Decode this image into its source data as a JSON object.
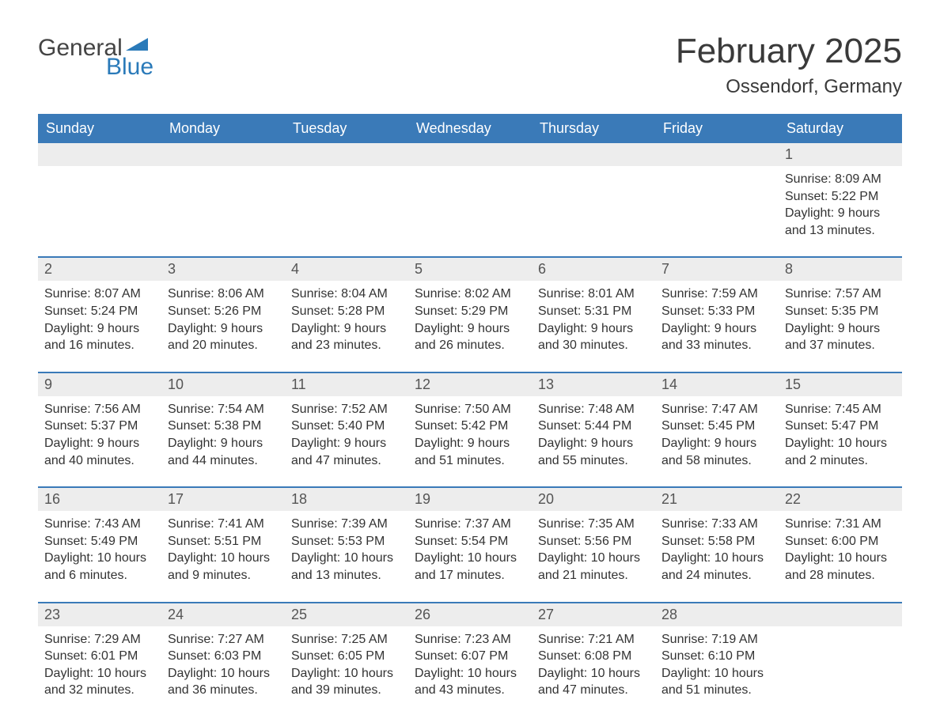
{
  "logo": {
    "text1": "General",
    "text2": "Blue",
    "mark_color": "#2a7ab9"
  },
  "title": {
    "month": "February 2025",
    "location": "Ossendorf, Germany"
  },
  "colors": {
    "header_bg": "#3a7ab8",
    "header_fg": "#ffffff",
    "daybar_bg": "#ededed",
    "daybar_border": "#3a7ab8",
    "text": "#333333",
    "title_text": "#3a3a3a"
  },
  "weekdays": [
    "Sunday",
    "Monday",
    "Tuesday",
    "Wednesday",
    "Thursday",
    "Friday",
    "Saturday"
  ],
  "weeks": [
    [
      null,
      null,
      null,
      null,
      null,
      null,
      {
        "n": "1",
        "sunrise": "Sunrise: 8:09 AM",
        "sunset": "Sunset: 5:22 PM",
        "daylight": "Daylight: 9 hours and 13 minutes."
      }
    ],
    [
      {
        "n": "2",
        "sunrise": "Sunrise: 8:07 AM",
        "sunset": "Sunset: 5:24 PM",
        "daylight": "Daylight: 9 hours and 16 minutes."
      },
      {
        "n": "3",
        "sunrise": "Sunrise: 8:06 AM",
        "sunset": "Sunset: 5:26 PM",
        "daylight": "Daylight: 9 hours and 20 minutes."
      },
      {
        "n": "4",
        "sunrise": "Sunrise: 8:04 AM",
        "sunset": "Sunset: 5:28 PM",
        "daylight": "Daylight: 9 hours and 23 minutes."
      },
      {
        "n": "5",
        "sunrise": "Sunrise: 8:02 AM",
        "sunset": "Sunset: 5:29 PM",
        "daylight": "Daylight: 9 hours and 26 minutes."
      },
      {
        "n": "6",
        "sunrise": "Sunrise: 8:01 AM",
        "sunset": "Sunset: 5:31 PM",
        "daylight": "Daylight: 9 hours and 30 minutes."
      },
      {
        "n": "7",
        "sunrise": "Sunrise: 7:59 AM",
        "sunset": "Sunset: 5:33 PM",
        "daylight": "Daylight: 9 hours and 33 minutes."
      },
      {
        "n": "8",
        "sunrise": "Sunrise: 7:57 AM",
        "sunset": "Sunset: 5:35 PM",
        "daylight": "Daylight: 9 hours and 37 minutes."
      }
    ],
    [
      {
        "n": "9",
        "sunrise": "Sunrise: 7:56 AM",
        "sunset": "Sunset: 5:37 PM",
        "daylight": "Daylight: 9 hours and 40 minutes."
      },
      {
        "n": "10",
        "sunrise": "Sunrise: 7:54 AM",
        "sunset": "Sunset: 5:38 PM",
        "daylight": "Daylight: 9 hours and 44 minutes."
      },
      {
        "n": "11",
        "sunrise": "Sunrise: 7:52 AM",
        "sunset": "Sunset: 5:40 PM",
        "daylight": "Daylight: 9 hours and 47 minutes."
      },
      {
        "n": "12",
        "sunrise": "Sunrise: 7:50 AM",
        "sunset": "Sunset: 5:42 PM",
        "daylight": "Daylight: 9 hours and 51 minutes."
      },
      {
        "n": "13",
        "sunrise": "Sunrise: 7:48 AM",
        "sunset": "Sunset: 5:44 PM",
        "daylight": "Daylight: 9 hours and 55 minutes."
      },
      {
        "n": "14",
        "sunrise": "Sunrise: 7:47 AM",
        "sunset": "Sunset: 5:45 PM",
        "daylight": "Daylight: 9 hours and 58 minutes."
      },
      {
        "n": "15",
        "sunrise": "Sunrise: 7:45 AM",
        "sunset": "Sunset: 5:47 PM",
        "daylight": "Daylight: 10 hours and 2 minutes."
      }
    ],
    [
      {
        "n": "16",
        "sunrise": "Sunrise: 7:43 AM",
        "sunset": "Sunset: 5:49 PM",
        "daylight": "Daylight: 10 hours and 6 minutes."
      },
      {
        "n": "17",
        "sunrise": "Sunrise: 7:41 AM",
        "sunset": "Sunset: 5:51 PM",
        "daylight": "Daylight: 10 hours and 9 minutes."
      },
      {
        "n": "18",
        "sunrise": "Sunrise: 7:39 AM",
        "sunset": "Sunset: 5:53 PM",
        "daylight": "Daylight: 10 hours and 13 minutes."
      },
      {
        "n": "19",
        "sunrise": "Sunrise: 7:37 AM",
        "sunset": "Sunset: 5:54 PM",
        "daylight": "Daylight: 10 hours and 17 minutes."
      },
      {
        "n": "20",
        "sunrise": "Sunrise: 7:35 AM",
        "sunset": "Sunset: 5:56 PM",
        "daylight": "Daylight: 10 hours and 21 minutes."
      },
      {
        "n": "21",
        "sunrise": "Sunrise: 7:33 AM",
        "sunset": "Sunset: 5:58 PM",
        "daylight": "Daylight: 10 hours and 24 minutes."
      },
      {
        "n": "22",
        "sunrise": "Sunrise: 7:31 AM",
        "sunset": "Sunset: 6:00 PM",
        "daylight": "Daylight: 10 hours and 28 minutes."
      }
    ],
    [
      {
        "n": "23",
        "sunrise": "Sunrise: 7:29 AM",
        "sunset": "Sunset: 6:01 PM",
        "daylight": "Daylight: 10 hours and 32 minutes."
      },
      {
        "n": "24",
        "sunrise": "Sunrise: 7:27 AM",
        "sunset": "Sunset: 6:03 PM",
        "daylight": "Daylight: 10 hours and 36 minutes."
      },
      {
        "n": "25",
        "sunrise": "Sunrise: 7:25 AM",
        "sunset": "Sunset: 6:05 PM",
        "daylight": "Daylight: 10 hours and 39 minutes."
      },
      {
        "n": "26",
        "sunrise": "Sunrise: 7:23 AM",
        "sunset": "Sunset: 6:07 PM",
        "daylight": "Daylight: 10 hours and 43 minutes."
      },
      {
        "n": "27",
        "sunrise": "Sunrise: 7:21 AM",
        "sunset": "Sunset: 6:08 PM",
        "daylight": "Daylight: 10 hours and 47 minutes."
      },
      {
        "n": "28",
        "sunrise": "Sunrise: 7:19 AM",
        "sunset": "Sunset: 6:10 PM",
        "daylight": "Daylight: 10 hours and 51 minutes."
      },
      null
    ]
  ]
}
